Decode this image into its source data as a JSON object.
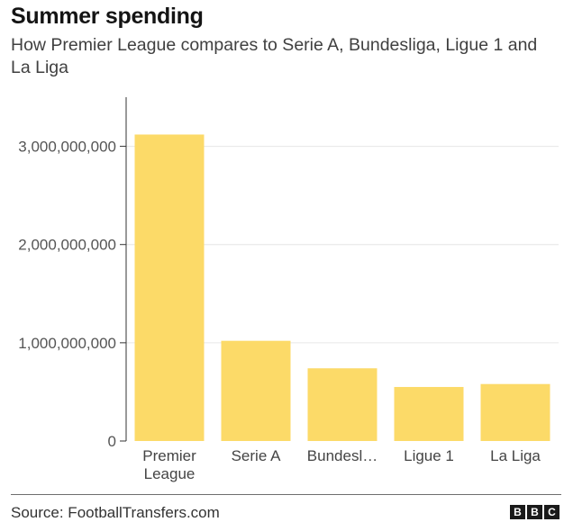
{
  "header": {
    "title": "Summer spending",
    "subtitle": "How Premier League compares to Serie A, Bundesliga, Ligue 1 and La Liga"
  },
  "footer": {
    "source": "Source: FootballTransfers.com",
    "logo_letters": [
      "B",
      "B",
      "C"
    ]
  },
  "colors": {
    "bar": "#FCDA68",
    "grid": "#e6e6e6",
    "axis": "#333333"
  },
  "chart_data": {
    "type": "bar",
    "categories": [
      "Premier League",
      "Serie A",
      "Bundesl…",
      "Ligue 1",
      "La Liga"
    ],
    "category_lines": [
      [
        "Premier",
        "League"
      ],
      [
        "Serie A"
      ],
      [
        "Bundesl…"
      ],
      [
        "Ligue 1"
      ],
      [
        "La Liga"
      ]
    ],
    "values": [
      3120000000,
      1020000000,
      740000000,
      550000000,
      580000000
    ],
    "yticks": [
      0,
      1000000000,
      2000000000,
      3000000000
    ],
    "ytick_labels": [
      "0",
      "1,000,000,000",
      "2,000,000,000",
      "3,000,000,000"
    ],
    "ylim": [
      0,
      3500000000
    ],
    "xlabel": "",
    "ylabel": "",
    "grid": true,
    "legend": false
  }
}
